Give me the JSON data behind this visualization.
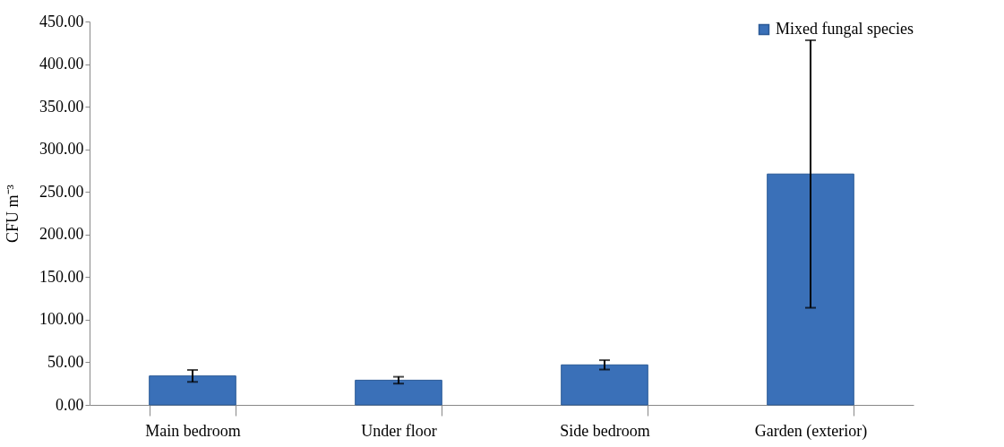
{
  "chart_data": {
    "type": "bar",
    "ylabel": "CFU m⁻³",
    "categories": [
      "Main bedroom",
      "Under floor",
      "Side bedroom",
      "Garden (exterior)"
    ],
    "series": [
      {
        "name": "Mixed fungal species",
        "color": "#3a70b8",
        "values": [
          34,
          29,
          47,
          271
        ],
        "errors": [
          7,
          4,
          5.5,
          157
        ]
      }
    ],
    "ylim": [
      0,
      450
    ],
    "yticks": [
      {
        "value": 0,
        "label": "0.00"
      },
      {
        "value": 50,
        "label": "50.00"
      },
      {
        "value": 100,
        "label": "100.00"
      },
      {
        "value": 150,
        "label": "150.00"
      },
      {
        "value": 200,
        "label": "200.00"
      },
      {
        "value": 250,
        "label": "250.00"
      },
      {
        "value": 300,
        "label": "300.00"
      },
      {
        "value": 350,
        "label": "350.00"
      },
      {
        "value": 400,
        "label": "400.00"
      },
      {
        "value": 450,
        "label": "450.00"
      }
    ],
    "legend": "top right",
    "grid": false
  }
}
